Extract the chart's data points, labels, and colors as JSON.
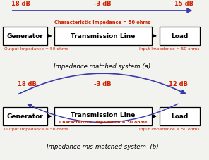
{
  "bg_color": "#f2f2ee",
  "box_color": "#ffffff",
  "box_edge": "#000000",
  "blue": "#3a3aaa",
  "black": "#000000",
  "red": "#cc2200",
  "diagram_a": {
    "title": "Impedance matched system (a)",
    "db_left": "18 dB",
    "db_mid": "-3 dB",
    "db_right": "15 dB",
    "char_imp": "Characteristic Impedance = 50 ohms",
    "gen_label": "Generator",
    "load_label": "Load",
    "tline_label": "Transmission Line",
    "out_imp": "Output Impedance = 50 ohms",
    "in_imp": "Input Impedance = 50 ohms"
  },
  "diagram_b": {
    "title": "Impedance mis-matched system  (b)",
    "db_left": "18 dB",
    "db_mid": "-3 dB",
    "db_right": "12 dB",
    "char_imp": "Characteristic Impedance = 30 ohms",
    "gen_label": "Generator",
    "load_label": "Load",
    "tline_label": "Transmission Line",
    "out_imp": "Output Impedance = 50 ohms",
    "in_imp": "Input Impedance = 50 ohms"
  }
}
